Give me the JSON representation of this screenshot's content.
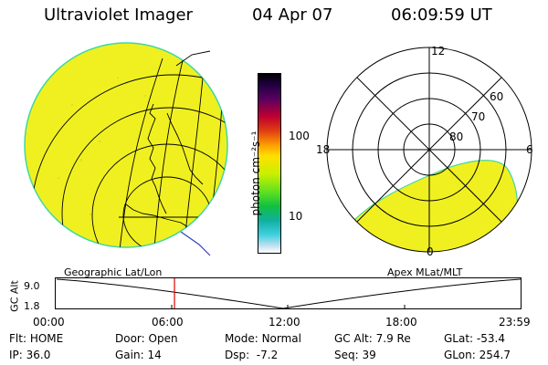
{
  "header": {
    "title": "Ultraviolet Imager",
    "date": "04 Apr 07",
    "time": "06:09:59 UT"
  },
  "colorbar": {
    "unit_label": "photon cm⁻²s⁻¹",
    "ticks": [
      "100",
      "10"
    ]
  },
  "polar": {
    "mlt_labels": {
      "top": "12",
      "left": "18",
      "right": "6",
      "bottom": "0"
    },
    "lat_labels": [
      "60",
      "70",
      "80"
    ]
  },
  "orbit": {
    "left_caption": "Geographic Lat/Lon",
    "right_caption": "Apex MLat/MLT",
    "y_axis_label": "GC Alt",
    "y_ticks": [
      "9.0",
      "1.8"
    ],
    "x_ticks": [
      "00:00",
      "06:00",
      "12:00",
      "18:00",
      "23:59"
    ],
    "marker_time": "06:10"
  },
  "status": [
    {
      "key": "Flt:",
      "value": "HOME"
    },
    {
      "key": "IP:",
      "value": "36.0"
    },
    {
      "key": "Door:",
      "value": "Open"
    },
    {
      "key": "Gain:",
      "value": "14"
    },
    {
      "key": "Mode:",
      "value": "Normal"
    },
    {
      "key": "Dsp:",
      "value": "-7.2"
    },
    {
      "key": "GC Alt:",
      "value": "7.9 Re"
    },
    {
      "key": "Seq:",
      "value": "39"
    },
    {
      "key": "GLat:",
      "value": "-53.4"
    },
    {
      "key": "GLon:",
      "value": "254.7"
    }
  ],
  "colors": {
    "aurora_fill": "#f0f020",
    "aurora_edge": "#40d8a0",
    "marker": "#e00000"
  }
}
